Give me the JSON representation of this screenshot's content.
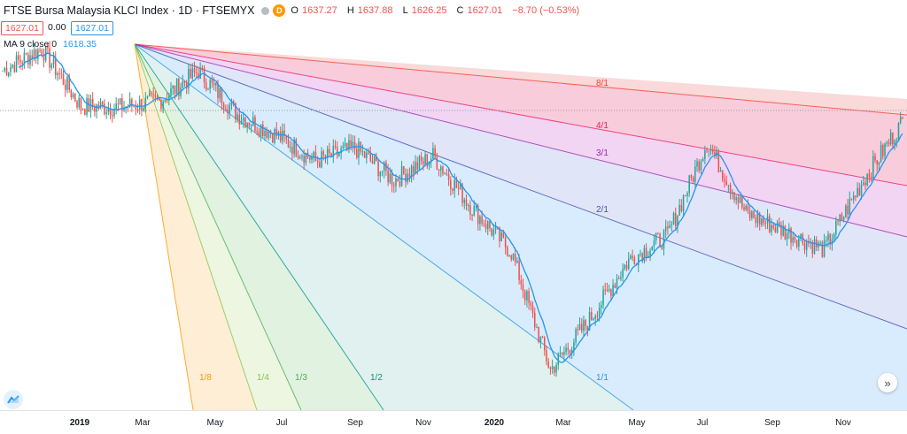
{
  "legend": {
    "title": "FTSE Bursa Malaysia KLCI Index · 1D · FTSEMYX",
    "badge": "D",
    "ohlc": [
      {
        "k": "O",
        "v": "1637.27"
      },
      {
        "k": "H",
        "v": "1637.88"
      },
      {
        "k": "L",
        "v": "1626.25"
      },
      {
        "k": "C",
        "v": "1627.01"
      }
    ],
    "change": "−8.70 (−0.53%)"
  },
  "price_box_red": "1627.01",
  "price_zero": "0.00",
  "price_box_blue": "1627.01",
  "ma": {
    "label": "MA 9 close 0",
    "value": "1618.35"
  },
  "x_ticks": [
    {
      "label": "2019",
      "bold": true
    },
    {
      "label": "Mar",
      "bold": false
    },
    {
      "label": "May",
      "bold": false
    },
    {
      "label": "Jul",
      "bold": false
    },
    {
      "label": "Sep",
      "bold": false
    },
    {
      "label": "Nov",
      "bold": false
    },
    {
      "label": "2020",
      "bold": true
    },
    {
      "label": "Mar",
      "bold": false
    },
    {
      "label": "May",
      "bold": false
    },
    {
      "label": "Jul",
      "bold": false
    },
    {
      "label": "Sep",
      "bold": false
    },
    {
      "label": "Nov",
      "bold": false
    }
  ],
  "icons": {
    "logo": "tradingview-logo-icon",
    "scroll": "scroll-right-icon"
  },
  "chart_data": {
    "type": "candlestick",
    "symbol": "FTSEMYX",
    "interval": "1D",
    "overlay_indicator": "MA 9 close 0",
    "colors": {
      "up": "#26a69a",
      "down": "#ef5350",
      "ma": "#2196f3"
    },
    "closes_monthly": {
      "x": [
        "2019-01",
        "2019-02",
        "2019-03",
        "2019-04",
        "2019-05",
        "2019-06",
        "2019-07",
        "2019-08",
        "2019-09",
        "2019-10",
        "2019-11",
        "2019-12",
        "2020-01",
        "2020-02",
        "2020-03",
        "2020-04",
        "2020-05",
        "2020-06",
        "2020-07",
        "2020-08",
        "2020-09",
        "2020-10",
        "2020-11",
        "2020-12"
      ],
      "y": [
        1684,
        1708,
        1644,
        1643,
        1650,
        1683,
        1635,
        1612,
        1583,
        1598,
        1562,
        1589,
        1531,
        1482,
        1351,
        1407,
        1473,
        1501,
        1604,
        1525,
        1505,
        1485,
        1562,
        1627
      ]
    },
    "gann_fan": {
      "pivot": "2019-02 high",
      "lines": [
        "8/1",
        "4/1",
        "3/1",
        "2/1",
        "1/1",
        "1/2",
        "1/3",
        "1/4",
        "1/8"
      ],
      "colors": {
        "8/1": "#f44336",
        "4/1": "#e91e63",
        "3/1": "#9c27b0",
        "2/1": "#3f51b5",
        "1/1": "#2196f3",
        "1/2": "#009688",
        "1/3": "#4caf50",
        "1/4": "#8bc34a",
        "1/8": "#ff9800"
      }
    }
  }
}
